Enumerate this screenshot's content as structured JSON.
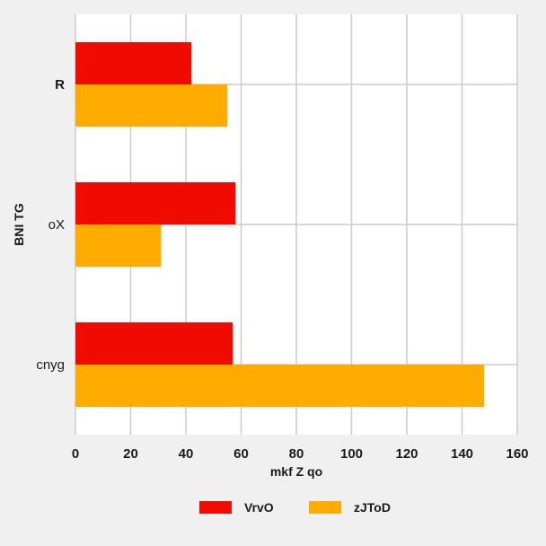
{
  "chart_data": {
    "type": "bar",
    "orientation": "horizontal",
    "categories": [
      "R",
      "oX",
      "cnyg"
    ],
    "series": [
      {
        "name": "VrvO",
        "color": "#f00a00",
        "values": [
          42,
          58,
          57
        ]
      },
      {
        "name": "zJToD",
        "color": "#ffab00",
        "values": [
          55,
          31,
          148
        ]
      }
    ],
    "xlabel": "mkf Z qo",
    "ylabel": "BNI TG",
    "xlim": [
      0,
      160
    ],
    "xticks": [
      0,
      20,
      40,
      60,
      80,
      100,
      120,
      140,
      160
    ],
    "grid": true,
    "legend_position": "bottom-center"
  }
}
